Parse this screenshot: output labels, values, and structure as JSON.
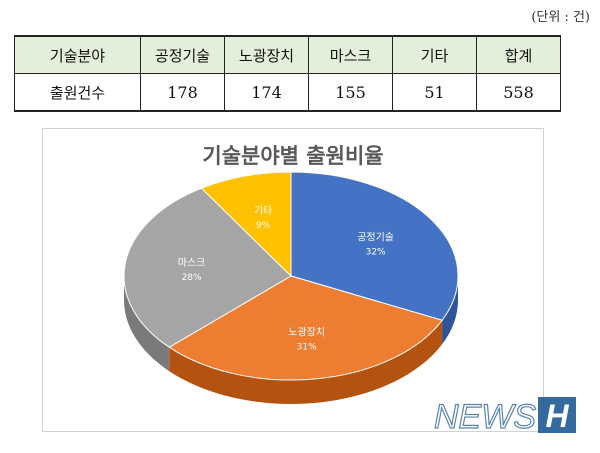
{
  "unit_note": "(단위 : 건)",
  "table": {
    "header": [
      "기술분야",
      "공정기술",
      "노광장치",
      "마스크",
      "기타",
      "합계"
    ],
    "row_label": "출원건수",
    "values": [
      "178",
      "174",
      "155",
      "51",
      "558"
    ]
  },
  "chart_data": {
    "type": "pie",
    "title": "기술분야별 출원비율",
    "categories": [
      "공정기술",
      "노광장치",
      "마스크",
      "기타"
    ],
    "values": [
      32,
      31,
      28,
      9
    ],
    "labels": [
      "32%",
      "31%",
      "28%",
      "9%"
    ],
    "colors": [
      "#4472c4",
      "#ed7d31",
      "#a5a5a5",
      "#ffc000"
    ],
    "depth_colors": [
      "#2f5597",
      "#b45210",
      "#7a7a7a",
      "#c99600"
    ],
    "legend": "none",
    "style": "3d"
  },
  "watermark": {
    "text": "NEWS",
    "mark": "H",
    "color": "#1f5a93"
  }
}
